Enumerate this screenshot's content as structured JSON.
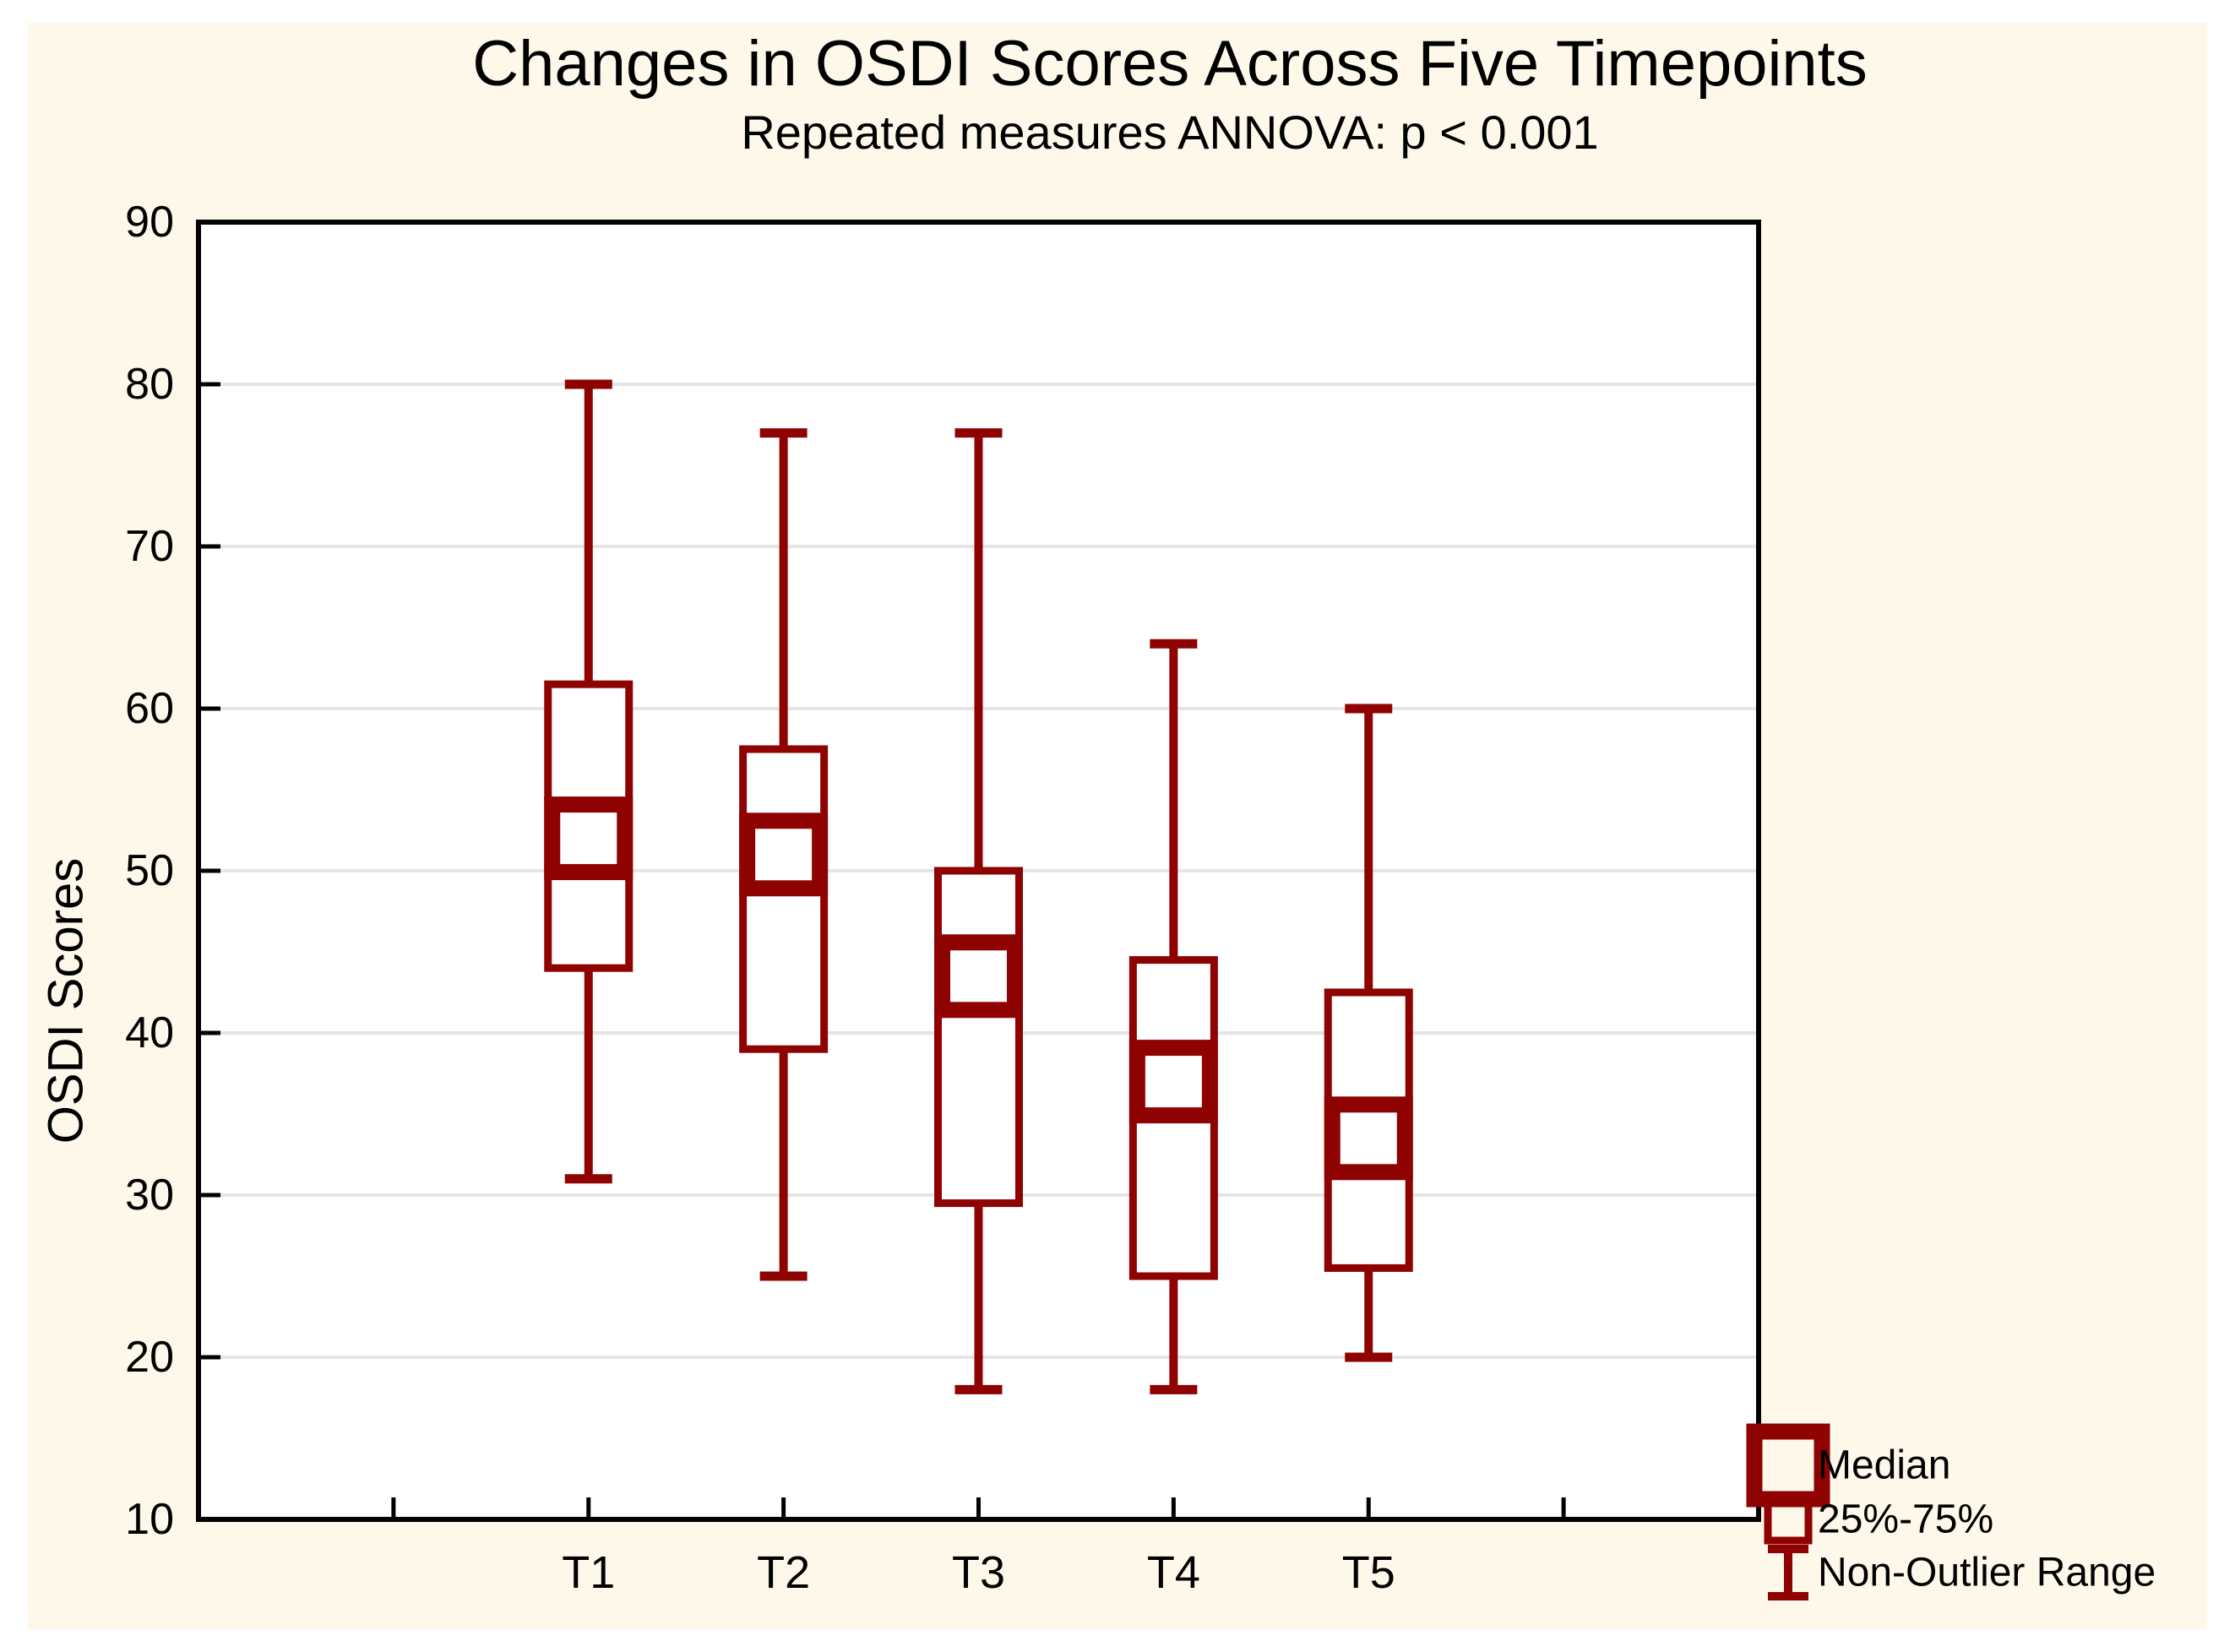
{
  "header": {
    "title": "Changes in OSDI Scores Across Five Timepoints",
    "subtitle": "Repeated measures ANNOVA: p < 0.001"
  },
  "chart_data": {
    "type": "box",
    "title": "Changes in OSDI Scores Across Five Timepoints",
    "subtitle": "Repeated measures ANNOVA: p < 0.001",
    "xlabel": "",
    "ylabel": "OSDI Scores",
    "ylim": [
      10,
      90
    ],
    "yticks": [
      10,
      20,
      30,
      40,
      50,
      60,
      70,
      80,
      90
    ],
    "grid": "horizontal",
    "categories": [
      "T1",
      "T2",
      "T3",
      "T4",
      "T5"
    ],
    "boxes": [
      {
        "category": "T1",
        "whisker_low": 31,
        "q1": 44,
        "median": 52,
        "q3": 61.5,
        "whisker_high": 80
      },
      {
        "category": "T2",
        "whisker_low": 25,
        "q1": 39,
        "median": 51,
        "q3": 57.5,
        "whisker_high": 77
      },
      {
        "category": "T3",
        "whisker_low": 18,
        "q1": 29.5,
        "median": 43.5,
        "q3": 50,
        "whisker_high": 77
      },
      {
        "category": "T4",
        "whisker_low": 18,
        "q1": 25,
        "median": 37,
        "q3": 44.5,
        "whisker_high": 64
      },
      {
        "category": "T5",
        "whisker_low": 20,
        "q1": 25.5,
        "median": 33.5,
        "q3": 42.5,
        "whisker_high": 60
      }
    ],
    "legend": {
      "position": "bottom-right",
      "items": [
        {
          "symbol": "median-square",
          "label": "Median"
        },
        {
          "symbol": "box-25-75",
          "label": "25%-75%"
        },
        {
          "symbol": "whisker-range",
          "label": "Non-Outlier Range"
        }
      ]
    },
    "colors": {
      "series": "#8F0202",
      "frame": "#000000",
      "grid": "#E5E5E5",
      "plot_background": "#FFFFFF",
      "panel_background": "#FDF8E9",
      "text": "#000000"
    }
  }
}
